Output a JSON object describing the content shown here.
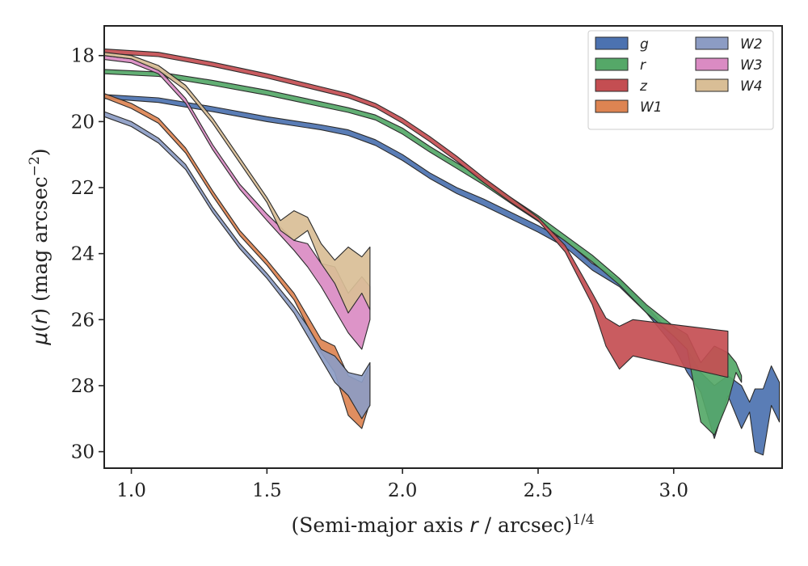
{
  "chart_data": {
    "type": "area",
    "title": "",
    "xlabel": "(Semi-major axis r / arcsec)^1/4",
    "ylabel": "μ(r) (mag arcsec^−2)",
    "xlim": [
      0.9,
      3.4
    ],
    "ylim": [
      30.5,
      17.1
    ],
    "y_inverted": true,
    "grid": false,
    "legend_placement": "top-right",
    "xticks": [
      {
        "v": 1.0,
        "label": "1.0"
      },
      {
        "v": 1.5,
        "label": "1.5"
      },
      {
        "v": 2.0,
        "label": "2.0"
      },
      {
        "v": 2.5,
        "label": "2.5"
      },
      {
        "v": 3.0,
        "label": "3.0"
      }
    ],
    "yticks": [
      {
        "v": 18,
        "label": "18"
      },
      {
        "v": 20,
        "label": "20"
      },
      {
        "v": 22,
        "label": "22"
      },
      {
        "v": 24,
        "label": "24"
      },
      {
        "v": 26,
        "label": "26"
      },
      {
        "v": 28,
        "label": "28"
      },
      {
        "v": 30,
        "label": "30"
      }
    ],
    "series": [
      {
        "name": "g",
        "color": "#4c72b0",
        "upper": [
          [
            0.9,
            19.18
          ],
          [
            1.1,
            19.28
          ],
          [
            1.3,
            19.55
          ],
          [
            1.5,
            19.85
          ],
          [
            1.7,
            20.1
          ],
          [
            1.8,
            20.25
          ],
          [
            1.9,
            20.55
          ],
          [
            2.0,
            21.0
          ],
          [
            2.1,
            21.55
          ],
          [
            2.2,
            22.0
          ],
          [
            2.3,
            22.35
          ],
          [
            2.4,
            22.75
          ],
          [
            2.5,
            23.15
          ],
          [
            2.6,
            23.6
          ],
          [
            2.7,
            24.3
          ],
          [
            2.8,
            24.8
          ],
          [
            2.9,
            25.6
          ],
          [
            3.0,
            26.5
          ],
          [
            3.05,
            26.9
          ],
          [
            3.1,
            27.6
          ],
          [
            3.15,
            28.0
          ],
          [
            3.2,
            27.7
          ],
          [
            3.25,
            28.0
          ],
          [
            3.28,
            28.5
          ],
          [
            3.3,
            28.1
          ],
          [
            3.33,
            28.1
          ],
          [
            3.36,
            27.4
          ],
          [
            3.39,
            27.9
          ]
        ],
        "lower": [
          [
            0.9,
            19.3
          ],
          [
            1.1,
            19.42
          ],
          [
            1.3,
            19.7
          ],
          [
            1.5,
            20.0
          ],
          [
            1.7,
            20.25
          ],
          [
            1.8,
            20.42
          ],
          [
            1.9,
            20.72
          ],
          [
            2.0,
            21.18
          ],
          [
            2.1,
            21.72
          ],
          [
            2.2,
            22.18
          ],
          [
            2.3,
            22.55
          ],
          [
            2.4,
            22.95
          ],
          [
            2.5,
            23.35
          ],
          [
            2.6,
            23.8
          ],
          [
            2.7,
            24.5
          ],
          [
            2.8,
            25.0
          ],
          [
            2.9,
            25.8
          ],
          [
            3.0,
            26.8
          ],
          [
            3.05,
            27.6
          ],
          [
            3.1,
            28.2
          ],
          [
            3.15,
            29.6
          ],
          [
            3.2,
            28.3
          ],
          [
            3.25,
            29.3
          ],
          [
            3.28,
            28.8
          ],
          [
            3.3,
            30.0
          ],
          [
            3.33,
            30.1
          ],
          [
            3.36,
            28.6
          ],
          [
            3.39,
            29.1
          ]
        ]
      },
      {
        "name": "r",
        "color": "#55a868",
        "upper": [
          [
            0.9,
            18.42
          ],
          [
            1.1,
            18.5
          ],
          [
            1.3,
            18.75
          ],
          [
            1.5,
            19.05
          ],
          [
            1.7,
            19.4
          ],
          [
            1.8,
            19.58
          ],
          [
            1.9,
            19.8
          ],
          [
            2.0,
            20.2
          ],
          [
            2.1,
            20.75
          ],
          [
            2.2,
            21.25
          ],
          [
            2.3,
            21.75
          ],
          [
            2.4,
            22.3
          ],
          [
            2.5,
            22.85
          ],
          [
            2.6,
            23.45
          ],
          [
            2.7,
            24.05
          ],
          [
            2.8,
            24.75
          ],
          [
            2.9,
            25.55
          ],
          [
            3.0,
            26.2
          ],
          [
            3.05,
            26.45
          ],
          [
            3.1,
            27.3
          ],
          [
            3.15,
            26.8
          ],
          [
            3.2,
            27.0
          ],
          [
            3.23,
            27.3
          ],
          [
            3.25,
            27.7
          ]
        ],
        "lower": [
          [
            0.9,
            18.55
          ],
          [
            1.1,
            18.63
          ],
          [
            1.3,
            18.9
          ],
          [
            1.5,
            19.2
          ],
          [
            1.7,
            19.55
          ],
          [
            1.8,
            19.72
          ],
          [
            1.9,
            19.95
          ],
          [
            2.0,
            20.38
          ],
          [
            2.1,
            20.92
          ],
          [
            2.2,
            21.42
          ],
          [
            2.3,
            21.92
          ],
          [
            2.4,
            22.48
          ],
          [
            2.5,
            23.02
          ],
          [
            2.6,
            23.62
          ],
          [
            2.7,
            24.25
          ],
          [
            2.8,
            24.95
          ],
          [
            2.9,
            25.8
          ],
          [
            3.0,
            26.5
          ],
          [
            3.05,
            26.9
          ],
          [
            3.1,
            29.1
          ],
          [
            3.15,
            29.5
          ],
          [
            3.2,
            28.5
          ],
          [
            3.23,
            27.6
          ],
          [
            3.25,
            27.9
          ]
        ]
      },
      {
        "name": "z",
        "color": "#c44e52",
        "upper": [
          [
            0.9,
            17.8
          ],
          [
            1.1,
            17.9
          ],
          [
            1.3,
            18.2
          ],
          [
            1.5,
            18.55
          ],
          [
            1.7,
            18.95
          ],
          [
            1.8,
            19.15
          ],
          [
            1.9,
            19.45
          ],
          [
            2.0,
            19.9
          ],
          [
            2.1,
            20.45
          ],
          [
            2.2,
            21.05
          ],
          [
            2.3,
            21.7
          ],
          [
            2.4,
            22.3
          ],
          [
            2.5,
            22.9
          ],
          [
            2.6,
            23.75
          ],
          [
            2.7,
            25.2
          ],
          [
            2.75,
            25.95
          ],
          [
            2.8,
            26.2
          ],
          [
            2.85,
            26.0
          ],
          [
            3.2,
            26.35
          ]
        ],
        "lower": [
          [
            0.9,
            17.93
          ],
          [
            1.1,
            18.03
          ],
          [
            1.3,
            18.33
          ],
          [
            1.5,
            18.68
          ],
          [
            1.7,
            19.08
          ],
          [
            1.8,
            19.28
          ],
          [
            1.9,
            19.58
          ],
          [
            2.0,
            20.05
          ],
          [
            2.1,
            20.6
          ],
          [
            2.2,
            21.2
          ],
          [
            2.3,
            21.85
          ],
          [
            2.4,
            22.45
          ],
          [
            2.5,
            23.0
          ],
          [
            2.6,
            23.95
          ],
          [
            2.7,
            25.55
          ],
          [
            2.75,
            26.8
          ],
          [
            2.8,
            27.5
          ],
          [
            2.85,
            27.1
          ],
          [
            3.2,
            27.75
          ]
        ]
      },
      {
        "name": "W1",
        "color": "#dd8452",
        "upper": [
          [
            0.9,
            19.15
          ],
          [
            1.0,
            19.45
          ],
          [
            1.1,
            19.9
          ],
          [
            1.2,
            20.8
          ],
          [
            1.3,
            22.1
          ],
          [
            1.4,
            23.3
          ],
          [
            1.5,
            24.2
          ],
          [
            1.6,
            25.2
          ],
          [
            1.65,
            25.9
          ],
          [
            1.7,
            26.6
          ],
          [
            1.75,
            26.8
          ],
          [
            1.8,
            27.7
          ],
          [
            1.85,
            27.9
          ],
          [
            1.88,
            27.4
          ]
        ],
        "lower": [
          [
            0.9,
            19.28
          ],
          [
            1.0,
            19.6
          ],
          [
            1.1,
            20.05
          ],
          [
            1.2,
            20.95
          ],
          [
            1.3,
            22.25
          ],
          [
            1.4,
            23.45
          ],
          [
            1.5,
            24.35
          ],
          [
            1.6,
            25.4
          ],
          [
            1.65,
            26.2
          ],
          [
            1.7,
            27.0
          ],
          [
            1.75,
            27.6
          ],
          [
            1.8,
            28.9
          ],
          [
            1.85,
            29.3
          ],
          [
            1.88,
            28.5
          ]
        ]
      },
      {
        "name": "W2",
        "color": "#8c9cc4",
        "upper": [
          [
            0.9,
            19.7
          ],
          [
            1.0,
            20.0
          ],
          [
            1.1,
            20.5
          ],
          [
            1.2,
            21.3
          ],
          [
            1.3,
            22.6
          ],
          [
            1.4,
            23.7
          ],
          [
            1.5,
            24.6
          ],
          [
            1.6,
            25.6
          ],
          [
            1.65,
            26.2
          ],
          [
            1.7,
            26.9
          ],
          [
            1.75,
            27.1
          ],
          [
            1.8,
            27.6
          ],
          [
            1.85,
            27.7
          ],
          [
            1.88,
            27.3
          ]
        ],
        "lower": [
          [
            0.9,
            19.85
          ],
          [
            1.0,
            20.15
          ],
          [
            1.1,
            20.65
          ],
          [
            1.2,
            21.45
          ],
          [
            1.3,
            22.75
          ],
          [
            1.4,
            23.85
          ],
          [
            1.5,
            24.75
          ],
          [
            1.6,
            25.8
          ],
          [
            1.65,
            26.5
          ],
          [
            1.7,
            27.2
          ],
          [
            1.75,
            27.9
          ],
          [
            1.8,
            28.3
          ],
          [
            1.85,
            29.0
          ],
          [
            1.88,
            28.6
          ]
        ]
      },
      {
        "name": "W3",
        "color": "#da8bc3",
        "upper": [
          [
            0.9,
            18.0
          ],
          [
            1.0,
            18.1
          ],
          [
            1.1,
            18.4
          ],
          [
            1.2,
            19.3
          ],
          [
            1.3,
            20.7
          ],
          [
            1.4,
            21.9
          ],
          [
            1.5,
            22.8
          ],
          [
            1.6,
            23.6
          ],
          [
            1.65,
            23.7
          ],
          [
            1.7,
            24.3
          ],
          [
            1.75,
            24.4
          ],
          [
            1.8,
            25.2
          ],
          [
            1.85,
            24.7
          ],
          [
            1.88,
            25.0
          ]
        ],
        "lower": [
          [
            0.9,
            18.12
          ],
          [
            1.0,
            18.22
          ],
          [
            1.1,
            18.55
          ],
          [
            1.2,
            19.45
          ],
          [
            1.3,
            20.85
          ],
          [
            1.4,
            22.05
          ],
          [
            1.5,
            23.0
          ],
          [
            1.6,
            23.9
          ],
          [
            1.65,
            24.4
          ],
          [
            1.7,
            25.0
          ],
          [
            1.75,
            25.7
          ],
          [
            1.8,
            26.4
          ],
          [
            1.85,
            26.9
          ],
          [
            1.88,
            26.0
          ]
        ]
      },
      {
        "name": "W4",
        "color": "#d9be96",
        "upper": [
          [
            0.9,
            17.9
          ],
          [
            1.0,
            18.0
          ],
          [
            1.1,
            18.3
          ],
          [
            1.2,
            18.9
          ],
          [
            1.3,
            19.9
          ],
          [
            1.4,
            21.1
          ],
          [
            1.5,
            22.3
          ],
          [
            1.55,
            23.0
          ],
          [
            1.6,
            22.7
          ],
          [
            1.65,
            22.9
          ],
          [
            1.7,
            23.7
          ],
          [
            1.75,
            24.2
          ],
          [
            1.8,
            23.8
          ],
          [
            1.85,
            24.1
          ],
          [
            1.88,
            23.8
          ]
        ],
        "lower": [
          [
            0.9,
            18.0
          ],
          [
            1.0,
            18.1
          ],
          [
            1.1,
            18.45
          ],
          [
            1.2,
            19.05
          ],
          [
            1.3,
            20.05
          ],
          [
            1.4,
            21.25
          ],
          [
            1.5,
            22.45
          ],
          [
            1.55,
            23.3
          ],
          [
            1.6,
            23.6
          ],
          [
            1.65,
            23.3
          ],
          [
            1.7,
            24.3
          ],
          [
            1.75,
            24.9
          ],
          [
            1.8,
            25.8
          ],
          [
            1.85,
            25.2
          ],
          [
            1.88,
            25.7
          ]
        ]
      }
    ]
  }
}
